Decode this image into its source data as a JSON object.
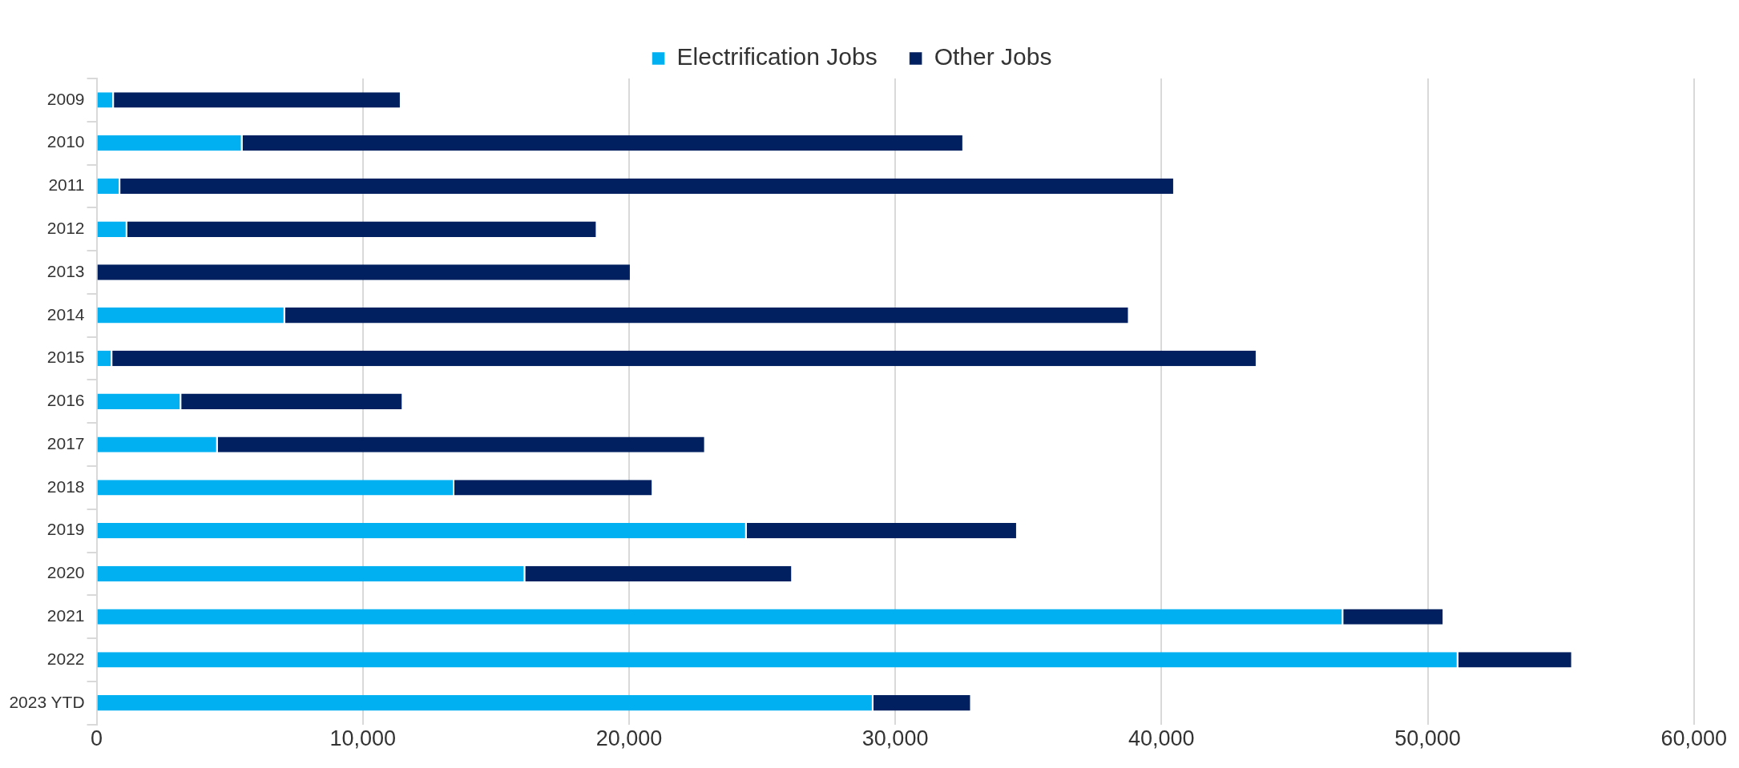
{
  "chart_data": {
    "type": "bar",
    "orientation": "horizontal",
    "stacked": true,
    "categories": [
      "2009",
      "2010",
      "2011",
      "2012",
      "2013",
      "2014",
      "2015",
      "2016",
      "2017",
      "2018",
      "2019",
      "2020",
      "2021",
      "2022",
      "2023 YTD"
    ],
    "series": [
      {
        "name": "Electrification Jobs",
        "color": "#00b0f0",
        "values": [
          650,
          5480,
          890,
          1150,
          0,
          7080,
          590,
          3180,
          4550,
          13440,
          24420,
          16100,
          46830,
          51150,
          29180
        ]
      },
      {
        "name": "Other Jobs",
        "color": "#002060",
        "values": [
          10800,
          27100,
          39610,
          17660,
          20090,
          31720,
          43010,
          8340,
          18330,
          7470,
          10180,
          10050,
          3790,
          4300,
          3690
        ]
      }
    ],
    "xlim": [
      0,
      60000
    ],
    "xticks": [
      {
        "value": 0,
        "label": "0"
      },
      {
        "value": 10000,
        "label": "10,000"
      },
      {
        "value": 20000,
        "label": "20,000"
      },
      {
        "value": 30000,
        "label": "30,000"
      },
      {
        "value": 40000,
        "label": "40,000"
      },
      {
        "value": 50000,
        "label": "50,000"
      },
      {
        "value": 60000,
        "label": "60,000"
      }
    ],
    "grid": "x",
    "legend": "top"
  }
}
